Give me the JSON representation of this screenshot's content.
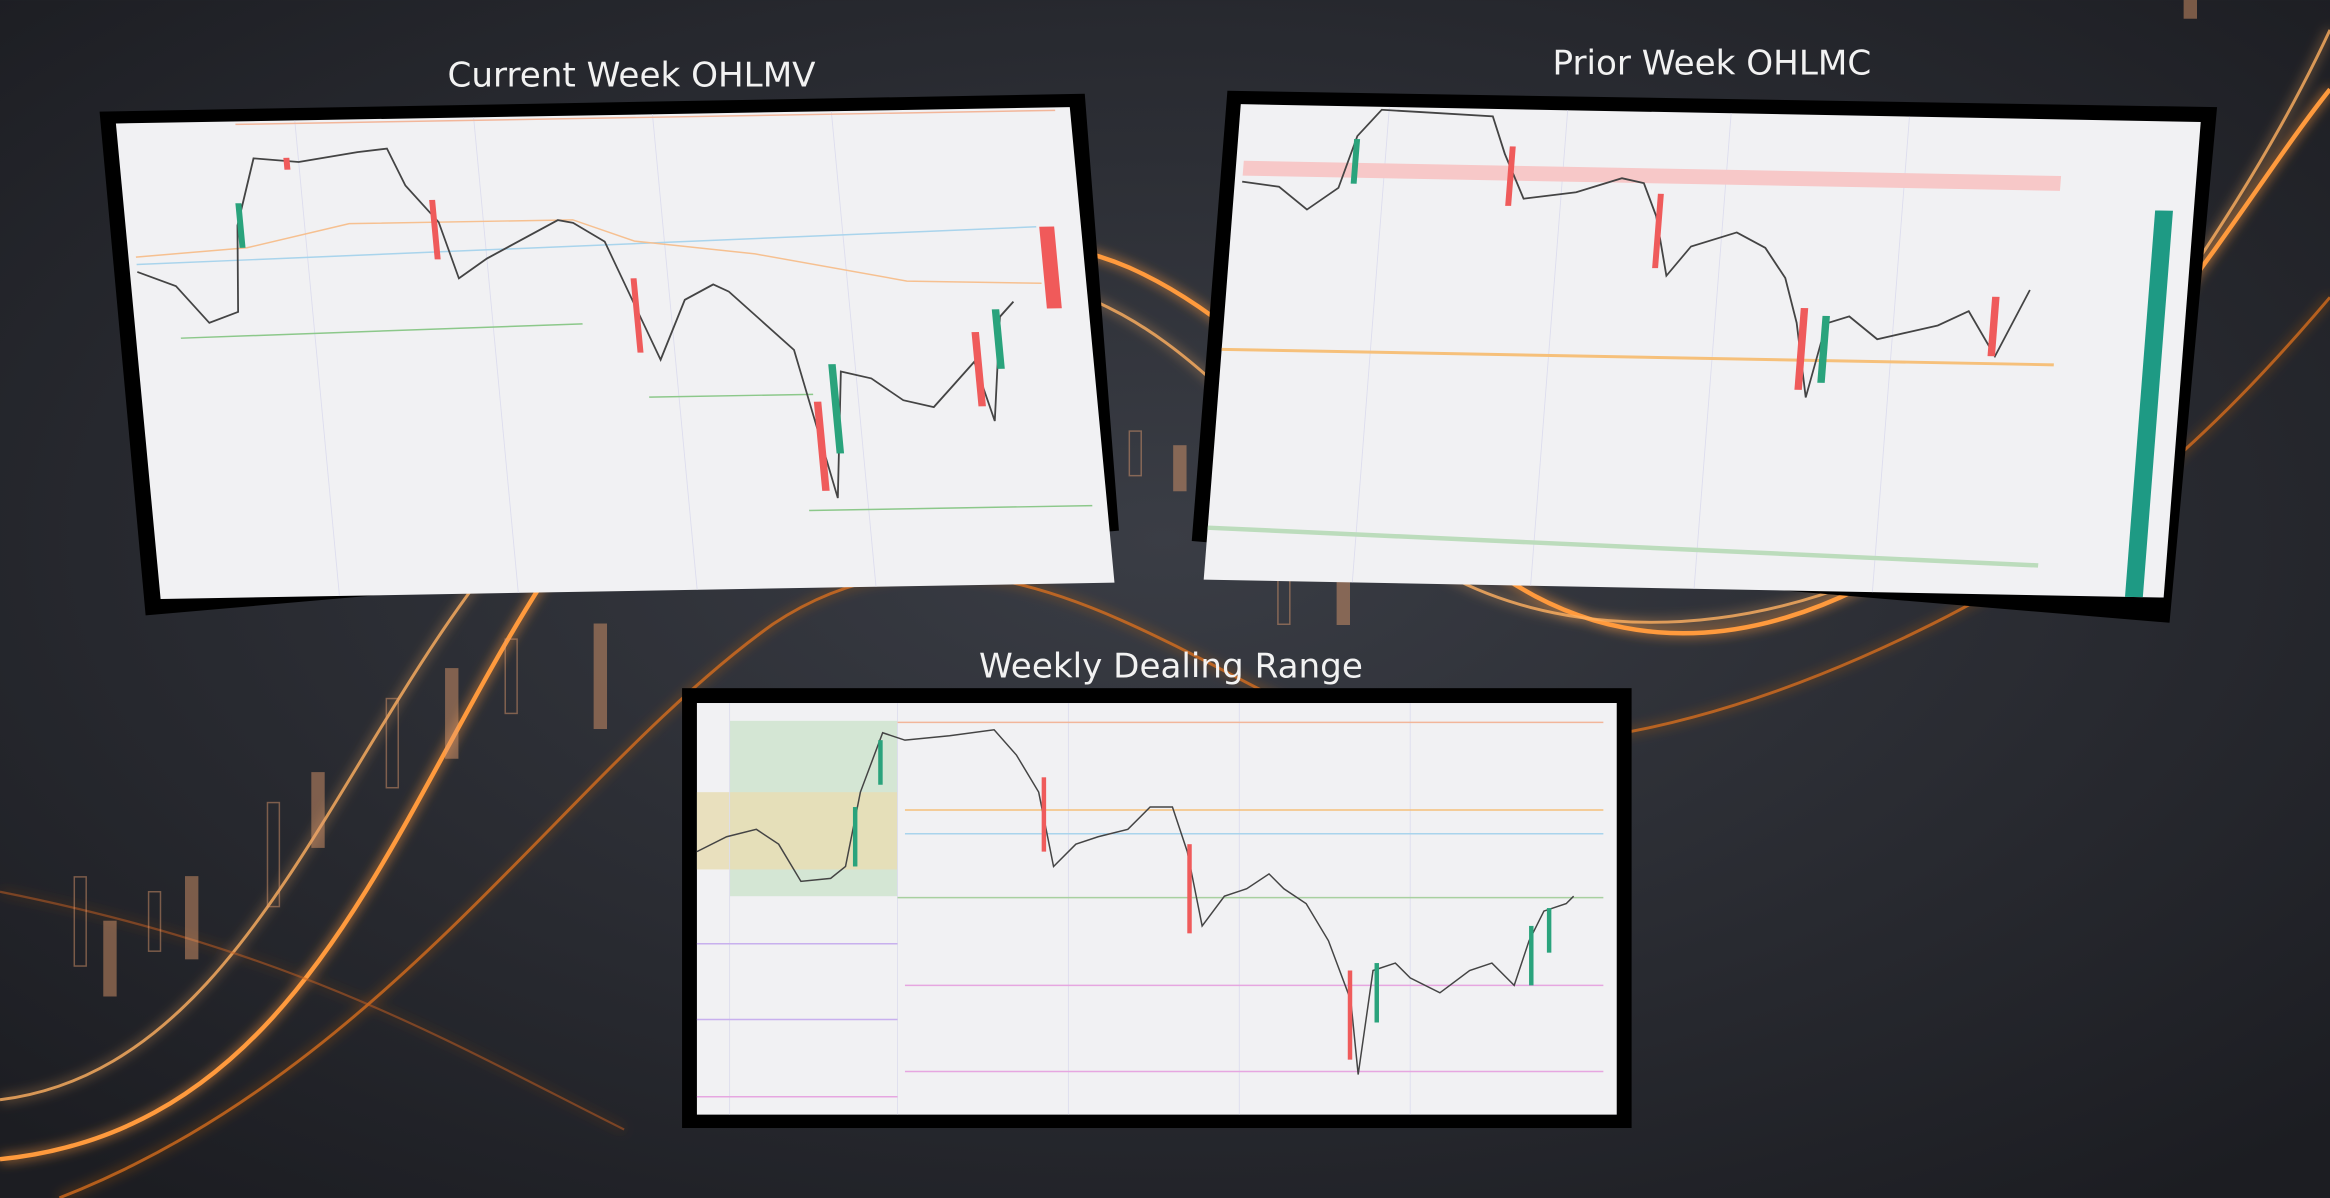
{
  "panels": [
    {
      "title": "Current Week OHLMV"
    },
    {
      "title": "Prior Week OHLMC"
    },
    {
      "title": "Weekly Dealing Range"
    }
  ]
}
